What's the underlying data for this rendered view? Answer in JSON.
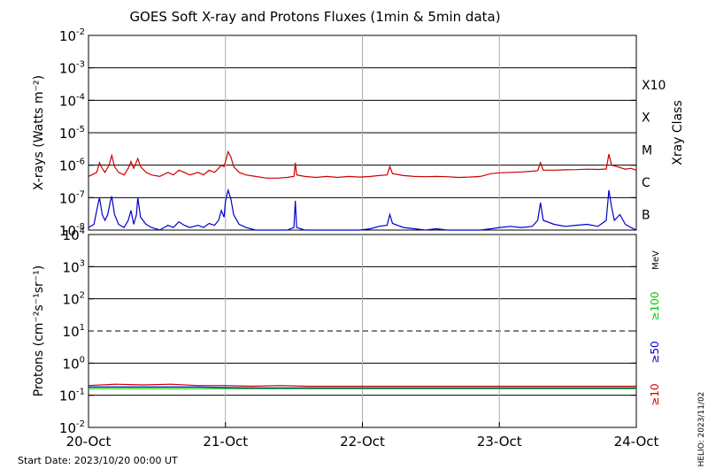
{
  "chart_data": [
    {
      "type": "line",
      "title": "GOES Soft X-ray and Protons Fluxes   (1min & 5min data)",
      "ylabel": "X-rays (Watts m⁻²)",
      "y_scale": "log",
      "ylim": [
        1e-08,
        0.01
      ],
      "y_ticks": [
        {
          "value": 1e-08,
          "base": "10",
          "exp": "-8"
        },
        {
          "value": 1e-07,
          "base": "10",
          "exp": "-7"
        },
        {
          "value": 1e-06,
          "base": "10",
          "exp": "-6"
        },
        {
          "value": 1e-05,
          "base": "10",
          "exp": "-5"
        },
        {
          "value": 0.0001,
          "base": "10",
          "exp": "-4"
        },
        {
          "value": 0.001,
          "base": "10",
          "exp": "-3"
        },
        {
          "value": 0.01,
          "base": "10",
          "exp": "-2"
        }
      ],
      "right_axis_label": "Xray Class",
      "right_classes": [
        {
          "label": "X10",
          "value": 0.001
        },
        {
          "label": "X",
          "value": 0.0001
        },
        {
          "label": "M",
          "value": 1e-05
        },
        {
          "label": "C",
          "value": 1e-06
        },
        {
          "label": "B",
          "value": 1e-07
        }
      ],
      "grid": true,
      "series": [
        {
          "color": "#cc0000",
          "points": [
            [
              0.0,
              4.5e-07
            ],
            [
              0.06,
              6e-07
            ],
            [
              0.08,
              1.2e-06
            ],
            [
              0.1,
              8e-07
            ],
            [
              0.12,
              6e-07
            ],
            [
              0.15,
              1e-06
            ],
            [
              0.17,
              2e-06
            ],
            [
              0.19,
              9e-07
            ],
            [
              0.22,
              6e-07
            ],
            [
              0.26,
              5e-07
            ],
            [
              0.29,
              8e-07
            ],
            [
              0.31,
              1.3e-06
            ],
            [
              0.33,
              8e-07
            ],
            [
              0.36,
              1.6e-06
            ],
            [
              0.38,
              9e-07
            ],
            [
              0.42,
              6e-07
            ],
            [
              0.46,
              5e-07
            ],
            [
              0.52,
              4.5e-07
            ],
            [
              0.58,
              6e-07
            ],
            [
              0.62,
              5e-07
            ],
            [
              0.66,
              7e-07
            ],
            [
              0.7,
              6e-07
            ],
            [
              0.74,
              5e-07
            ],
            [
              0.8,
              6e-07
            ],
            [
              0.84,
              5e-07
            ],
            [
              0.88,
              7e-07
            ],
            [
              0.92,
              6e-07
            ],
            [
              0.95,
              8e-07
            ],
            [
              0.97,
              1e-06
            ],
            [
              0.99,
              9e-07
            ],
            [
              1.0,
              1.3e-06
            ],
            [
              1.02,
              2.6e-06
            ],
            [
              1.04,
              1.8e-06
            ],
            [
              1.06,
              9e-07
            ],
            [
              1.1,
              6e-07
            ],
            [
              1.15,
              5e-07
            ],
            [
              1.22,
              4.5e-07
            ],
            [
              1.3,
              4e-07
            ],
            [
              1.38,
              4e-07
            ],
            [
              1.45,
              4.2e-07
            ],
            [
              1.5,
              4.5e-07
            ],
            [
              1.51,
              1.2e-06
            ],
            [
              1.52,
              5e-07
            ],
            [
              1.58,
              4.5e-07
            ],
            [
              1.66,
              4.2e-07
            ],
            [
              1.74,
              4.5e-07
            ],
            [
              1.82,
              4.2e-07
            ],
            [
              1.9,
              4.5e-07
            ],
            [
              1.98,
              4.3e-07
            ],
            [
              2.06,
              4.5e-07
            ],
            [
              2.12,
              4.8e-07
            ],
            [
              2.18,
              5e-07
            ],
            [
              2.2,
              9e-07
            ],
            [
              2.22,
              5.5e-07
            ],
            [
              2.3,
              4.8e-07
            ],
            [
              2.38,
              4.5e-07
            ],
            [
              2.46,
              4.4e-07
            ],
            [
              2.54,
              4.5e-07
            ],
            [
              2.62,
              4.4e-07
            ],
            [
              2.7,
              4.2e-07
            ],
            [
              2.78,
              4.3e-07
            ],
            [
              2.86,
              4.5e-07
            ],
            [
              2.94,
              5.5e-07
            ],
            [
              3.0,
              5.8e-07
            ],
            [
              3.08,
              6e-07
            ],
            [
              3.16,
              6.2e-07
            ],
            [
              3.24,
              6.5e-07
            ],
            [
              3.28,
              6.8e-07
            ],
            [
              3.3,
              1.2e-06
            ],
            [
              3.32,
              7e-07
            ],
            [
              3.4,
              7e-07
            ],
            [
              3.48,
              7.2e-07
            ],
            [
              3.56,
              7.3e-07
            ],
            [
              3.64,
              7.5e-07
            ],
            [
              3.72,
              7.4e-07
            ],
            [
              3.78,
              7.6e-07
            ],
            [
              3.8,
              2.2e-06
            ],
            [
              3.82,
              1e-06
            ],
            [
              3.86,
              9e-07
            ],
            [
              3.92,
              7.5e-07
            ],
            [
              3.96,
              8e-07
            ],
            [
              4.0,
              7e-07
            ]
          ]
        },
        {
          "color": "#0000cc",
          "points": [
            [
              0.0,
              1.2e-08
            ],
            [
              0.04,
              1.5e-08
            ],
            [
              0.06,
              4e-08
            ],
            [
              0.08,
              1e-07
            ],
            [
              0.1,
              3e-08
            ],
            [
              0.12,
              2e-08
            ],
            [
              0.14,
              3e-08
            ],
            [
              0.16,
              8e-08
            ],
            [
              0.17,
              1.1e-07
            ],
            [
              0.19,
              3e-08
            ],
            [
              0.22,
              1.5e-08
            ],
            [
              0.26,
              1.2e-08
            ],
            [
              0.29,
              2e-08
            ],
            [
              0.31,
              4e-08
            ],
            [
              0.33,
              1.5e-08
            ],
            [
              0.35,
              3e-08
            ],
            [
              0.36,
              1e-07
            ],
            [
              0.38,
              2.5e-08
            ],
            [
              0.42,
              1.5e-08
            ],
            [
              0.46,
              1.2e-08
            ],
            [
              0.52,
              1e-08
            ],
            [
              0.58,
              1.4e-08
            ],
            [
              0.62,
              1.2e-08
            ],
            [
              0.66,
              1.8e-08
            ],
            [
              0.7,
              1.4e-08
            ],
            [
              0.74,
              1.2e-08
            ],
            [
              0.8,
              1.4e-08
            ],
            [
              0.84,
              1.2e-08
            ],
            [
              0.88,
              1.6e-08
            ],
            [
              0.92,
              1.4e-08
            ],
            [
              0.95,
              2e-08
            ],
            [
              0.97,
              4e-08
            ],
            [
              0.99,
              2.5e-08
            ],
            [
              1.0,
              8e-08
            ],
            [
              1.02,
              1.7e-07
            ],
            [
              1.04,
              9e-08
            ],
            [
              1.06,
              3e-08
            ],
            [
              1.1,
              1.5e-08
            ],
            [
              1.15,
              1.2e-08
            ],
            [
              1.22,
              1e-08
            ],
            [
              1.3,
              1e-08
            ],
            [
              1.38,
              1e-08
            ],
            [
              1.45,
              1e-08
            ],
            [
              1.5,
              1.2e-08
            ],
            [
              1.51,
              8e-08
            ],
            [
              1.52,
              1.2e-08
            ],
            [
              1.58,
              1e-08
            ],
            [
              1.66,
              1e-08
            ],
            [
              1.74,
              1e-08
            ],
            [
              1.82,
              1e-08
            ],
            [
              1.9,
              1e-08
            ],
            [
              1.98,
              1e-08
            ],
            [
              2.06,
              1.1e-08
            ],
            [
              2.12,
              1.3e-08
            ],
            [
              2.18,
              1.4e-08
            ],
            [
              2.2,
              3e-08
            ],
            [
              2.22,
              1.6e-08
            ],
            [
              2.3,
              1.2e-08
            ],
            [
              2.38,
              1.1e-08
            ],
            [
              2.46,
              1e-08
            ],
            [
              2.54,
              1.1e-08
            ],
            [
              2.62,
              1e-08
            ],
            [
              2.7,
              1e-08
            ],
            [
              2.78,
              1e-08
            ],
            [
              2.86,
              1e-08
            ],
            [
              2.94,
              1.1e-08
            ],
            [
              3.0,
              1.2e-08
            ],
            [
              3.08,
              1.3e-08
            ],
            [
              3.16,
              1.2e-08
            ],
            [
              3.24,
              1.3e-08
            ],
            [
              3.28,
              2e-08
            ],
            [
              3.3,
              7e-08
            ],
            [
              3.32,
              2e-08
            ],
            [
              3.4,
              1.5e-08
            ],
            [
              3.48,
              1.3e-08
            ],
            [
              3.56,
              1.4e-08
            ],
            [
              3.64,
              1.5e-08
            ],
            [
              3.72,
              1.3e-08
            ],
            [
              3.78,
              2e-08
            ],
            [
              3.8,
              1.7e-07
            ],
            [
              3.82,
              5e-08
            ],
            [
              3.84,
              2e-08
            ],
            [
              3.88,
              3e-08
            ],
            [
              3.92,
              1.5e-08
            ],
            [
              3.96,
              1.2e-08
            ],
            [
              4.0,
              1e-08
            ]
          ]
        }
      ]
    },
    {
      "type": "line",
      "ylabel": "Protons (cm⁻²s⁻¹sr⁻¹)",
      "y_scale": "log",
      "ylim": [
        0.01,
        10000
      ],
      "y_ticks": [
        {
          "value": 0.01,
          "base": "10",
          "exp": "-2"
        },
        {
          "value": 0.1,
          "base": "10",
          "exp": "-1"
        },
        {
          "value": 1,
          "base": "10",
          "exp": "0"
        },
        {
          "value": 10,
          "base": "10",
          "exp": "1"
        },
        {
          "value": 100,
          "base": "10",
          "exp": "2"
        },
        {
          "value": 1000,
          "base": "10",
          "exp": "3"
        },
        {
          "value": 10000,
          "base": "10",
          "exp": "4"
        }
      ],
      "threshold_line": {
        "value": 10,
        "style": "dashed"
      },
      "right_unit": "MeV",
      "grid": true,
      "series": [
        {
          "name": "≥10",
          "color": "#cc0000",
          "points": [
            [
              0.0,
              0.2
            ],
            [
              0.2,
              0.22
            ],
            [
              0.4,
              0.21
            ],
            [
              0.6,
              0.22
            ],
            [
              0.8,
              0.2
            ],
            [
              1.0,
              0.2
            ],
            [
              1.2,
              0.19
            ],
            [
              1.4,
              0.2
            ],
            [
              1.6,
              0.19
            ],
            [
              1.8,
              0.19
            ],
            [
              2.0,
              0.19
            ],
            [
              2.2,
              0.19
            ],
            [
              2.4,
              0.19
            ],
            [
              2.6,
              0.19
            ],
            [
              2.8,
              0.19
            ],
            [
              3.0,
              0.19
            ],
            [
              3.2,
              0.19
            ],
            [
              3.4,
              0.19
            ],
            [
              3.6,
              0.19
            ],
            [
              3.8,
              0.19
            ],
            [
              4.0,
              0.19
            ]
          ]
        },
        {
          "name": "≥50",
          "color": "#0000cc",
          "points": [
            [
              0.0,
              0.18
            ],
            [
              0.4,
              0.18
            ],
            [
              0.8,
              0.18
            ],
            [
              1.2,
              0.17
            ],
            [
              1.6,
              0.17
            ],
            [
              2.0,
              0.17
            ],
            [
              2.4,
              0.17
            ],
            [
              2.8,
              0.17
            ],
            [
              3.2,
              0.17
            ],
            [
              3.6,
              0.17
            ],
            [
              4.0,
              0.17
            ]
          ]
        },
        {
          "name": "≥100",
          "color": "#00cc00",
          "points": [
            [
              0.0,
              0.16
            ],
            [
              0.4,
              0.16
            ],
            [
              0.8,
              0.16
            ],
            [
              1.2,
              0.16
            ],
            [
              1.6,
              0.16
            ],
            [
              2.0,
              0.16
            ],
            [
              2.4,
              0.16
            ],
            [
              2.8,
              0.16
            ],
            [
              3.2,
              0.16
            ],
            [
              3.6,
              0.16
            ],
            [
              4.0,
              0.16
            ]
          ]
        }
      ]
    }
  ],
  "x_axis": {
    "categories": [
      "20-Oct",
      "21-Oct",
      "22-Oct",
      "23-Oct",
      "24-Oct"
    ],
    "range_days": [
      0,
      4
    ]
  },
  "footer": {
    "start_date": "Start Date: 2023/10/20 00:00 UT",
    "credit": "HELIO: 2023/11/02"
  }
}
